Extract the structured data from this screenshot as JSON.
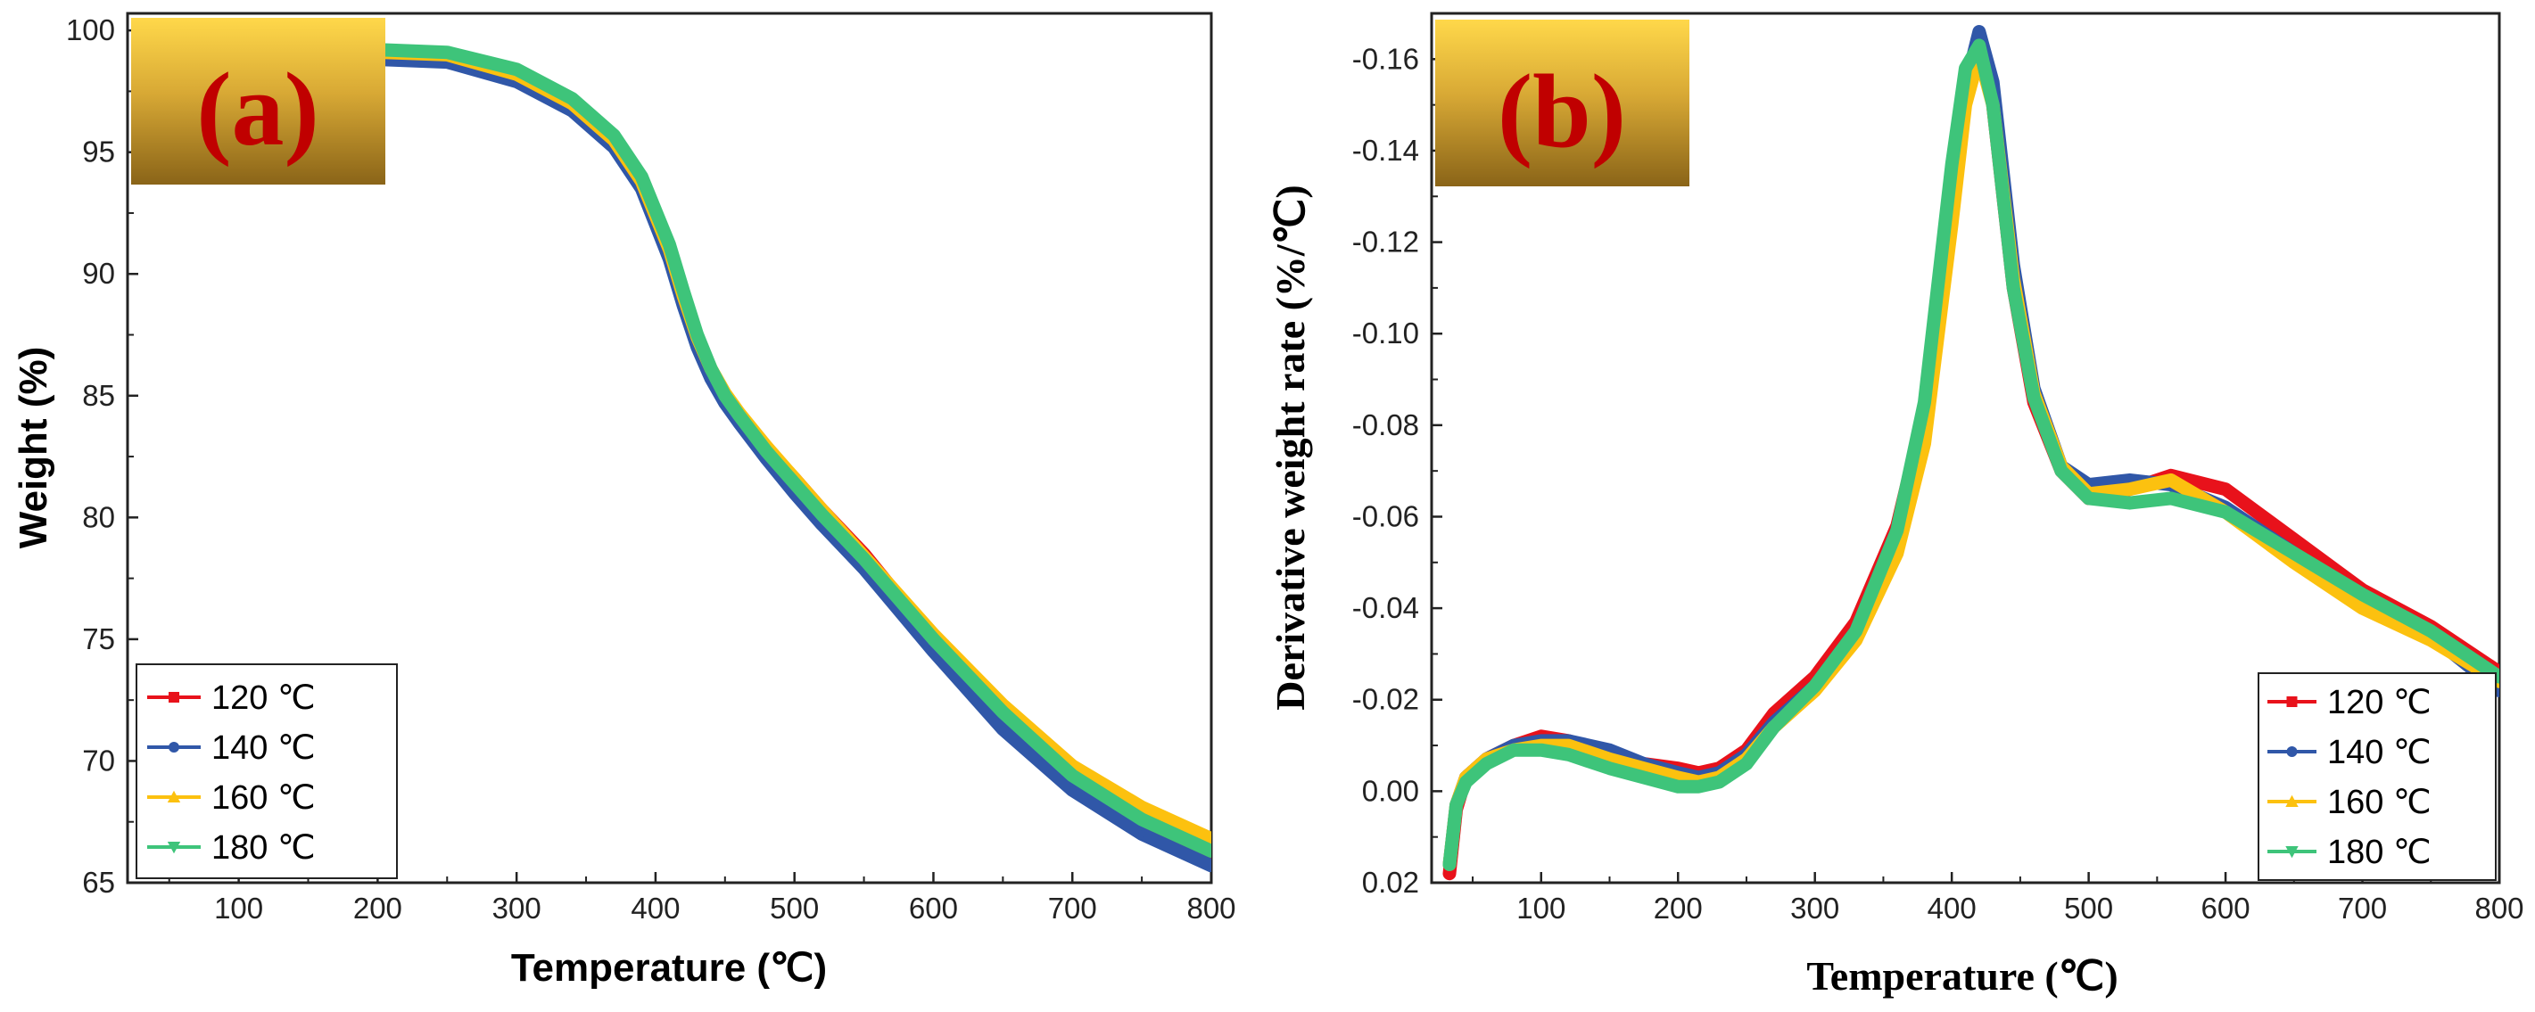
{
  "chart_data": [
    {
      "panel": "(a)",
      "type": "line",
      "xlabel": "Temperature (℃)",
      "ylabel": "Weight (%)",
      "xlim": [
        20,
        800
      ],
      "ylim": [
        65,
        100.7
      ],
      "xticks": [
        100,
        200,
        300,
        400,
        500,
        600,
        700,
        800
      ],
      "yticks": [
        65,
        70,
        75,
        80,
        85,
        90,
        95,
        100
      ],
      "legend_position": "bottom-left",
      "series": [
        {
          "name": "120 ℃",
          "color": "#e8121b",
          "marker": "square",
          "x": [
            205,
            250,
            300,
            340,
            370,
            390,
            410,
            420,
            430,
            440,
            450,
            460,
            480,
            500,
            520,
            550,
            600,
            650,
            700,
            750,
            800
          ],
          "y": [
            99.0,
            98.9,
            98.0,
            96.8,
            95.3,
            93.6,
            90.8,
            89.0,
            87.3,
            86.0,
            85.0,
            84.2,
            82.8,
            81.6,
            80.3,
            78.5,
            75.0,
            71.9,
            69.3,
            67.5,
            66.1
          ]
        },
        {
          "name": "140 ℃",
          "color": "#3057a8",
          "marker": "circle",
          "x": [
            205,
            250,
            300,
            340,
            370,
            390,
            410,
            420,
            430,
            440,
            450,
            460,
            480,
            500,
            520,
            550,
            600,
            650,
            700,
            750,
            800
          ],
          "y": [
            98.8,
            98.7,
            97.9,
            96.7,
            95.2,
            93.5,
            90.6,
            88.7,
            87.0,
            85.7,
            84.7,
            83.9,
            82.4,
            81.0,
            79.7,
            77.9,
            74.5,
            71.3,
            68.8,
            67.0,
            65.7
          ]
        },
        {
          "name": "160 ℃",
          "color": "#fcc10f",
          "marker": "triangle-up",
          "x": [
            205,
            250,
            300,
            340,
            370,
            390,
            410,
            420,
            430,
            440,
            450,
            460,
            480,
            500,
            520,
            550,
            600,
            650,
            700,
            750,
            800
          ],
          "y": [
            99.1,
            99.0,
            98.2,
            97.0,
            95.5,
            93.8,
            91.0,
            89.1,
            87.4,
            86.1,
            85.1,
            84.3,
            82.9,
            81.6,
            80.3,
            78.4,
            75.2,
            72.3,
            69.8,
            68.1,
            66.8
          ]
        },
        {
          "name": "180 ℃",
          "color": "#3ec47a",
          "marker": "triangle-down",
          "x": [
            205,
            250,
            300,
            340,
            370,
            390,
            410,
            420,
            430,
            440,
            450,
            460,
            480,
            500,
            520,
            550,
            600,
            650,
            700,
            750,
            800
          ],
          "y": [
            99.2,
            99.1,
            98.4,
            97.2,
            95.7,
            94.0,
            91.2,
            89.3,
            87.5,
            86.1,
            85.0,
            84.2,
            82.7,
            81.4,
            80.1,
            78.3,
            75.0,
            72.0,
            69.4,
            67.6,
            66.3
          ]
        }
      ]
    },
    {
      "panel": "(b)",
      "type": "line",
      "xlabel": "Temperature (℃)",
      "ylabel": "Derivative weight rate (%/℃)",
      "xlim": [
        20,
        800
      ],
      "ylim": [
        0.02,
        -0.17
      ],
      "xticks": [
        100,
        200,
        300,
        400,
        500,
        600,
        700,
        800
      ],
      "yticks": [
        0.02,
        0.0,
        -0.02,
        -0.04,
        -0.06,
        -0.08,
        -0.1,
        -0.12,
        -0.14,
        -0.16
      ],
      "ytick_labels": [
        "0.02",
        "0.00",
        "-0.02",
        "-0.04",
        "-0.06",
        "-0.08",
        "-0.10",
        "-0.12",
        "-0.14",
        "-0.16"
      ],
      "legend_position": "bottom-right",
      "series": [
        {
          "name": "120 ℃",
          "color": "#e8121b",
          "marker": "square",
          "x": [
            33,
            38,
            45,
            60,
            80,
            100,
            120,
            150,
            175,
            200,
            215,
            230,
            250,
            270,
            300,
            330,
            360,
            380,
            400,
            410,
            420,
            430,
            445,
            460,
            480,
            500,
            530,
            560,
            600,
            650,
            700,
            750,
            800
          ],
          "y": [
            0.018,
            0.004,
            -0.003,
            -0.007,
            -0.01,
            -0.012,
            -0.011,
            -0.008,
            -0.006,
            -0.005,
            -0.004,
            -0.005,
            -0.009,
            -0.017,
            -0.025,
            -0.037,
            -0.058,
            -0.083,
            -0.13,
            -0.152,
            -0.164,
            -0.15,
            -0.11,
            -0.085,
            -0.07,
            -0.064,
            -0.066,
            -0.069,
            -0.066,
            -0.055,
            -0.044,
            -0.036,
            -0.026
          ]
        },
        {
          "name": "140 ℃",
          "color": "#3057a8",
          "marker": "circle",
          "x": [
            33,
            38,
            45,
            60,
            80,
            100,
            120,
            150,
            175,
            200,
            215,
            230,
            250,
            270,
            300,
            330,
            360,
            380,
            400,
            410,
            420,
            430,
            445,
            460,
            480,
            500,
            530,
            560,
            600,
            650,
            700,
            750,
            800
          ],
          "y": [
            0.016,
            0.003,
            -0.003,
            -0.007,
            -0.01,
            -0.011,
            -0.011,
            -0.009,
            -0.006,
            -0.004,
            -0.003,
            -0.004,
            -0.008,
            -0.015,
            -0.023,
            -0.035,
            -0.057,
            -0.083,
            -0.131,
            -0.154,
            -0.166,
            -0.155,
            -0.115,
            -0.088,
            -0.071,
            -0.067,
            -0.068,
            -0.067,
            -0.062,
            -0.052,
            -0.042,
            -0.034,
            -0.022
          ]
        },
        {
          "name": "160 ℃",
          "color": "#fcc10f",
          "marker": "triangle-up",
          "x": [
            33,
            38,
            45,
            60,
            80,
            100,
            120,
            150,
            175,
            200,
            215,
            230,
            250,
            270,
            300,
            330,
            360,
            380,
            400,
            410,
            420,
            430,
            445,
            460,
            480,
            500,
            530,
            560,
            600,
            650,
            700,
            750,
            800
          ],
          "y": [
            0.016,
            0.003,
            -0.003,
            -0.007,
            -0.009,
            -0.01,
            -0.01,
            -0.007,
            -0.005,
            -0.003,
            -0.002,
            -0.003,
            -0.007,
            -0.014,
            -0.022,
            -0.033,
            -0.052,
            -0.076,
            -0.124,
            -0.15,
            -0.161,
            -0.15,
            -0.112,
            -0.087,
            -0.071,
            -0.065,
            -0.066,
            -0.068,
            -0.061,
            -0.05,
            -0.04,
            -0.033,
            -0.024
          ]
        },
        {
          "name": "180 ℃",
          "color": "#3ec47a",
          "marker": "triangle-down",
          "x": [
            33,
            38,
            45,
            60,
            80,
            100,
            120,
            150,
            175,
            200,
            215,
            230,
            250,
            270,
            300,
            330,
            360,
            380,
            400,
            410,
            420,
            430,
            445,
            460,
            480,
            500,
            530,
            560,
            600,
            650,
            700,
            750,
            800
          ],
          "y": [
            0.016,
            0.003,
            -0.002,
            -0.006,
            -0.009,
            -0.009,
            -0.008,
            -0.005,
            -0.003,
            -0.001,
            -0.001,
            -0.002,
            -0.006,
            -0.014,
            -0.023,
            -0.035,
            -0.057,
            -0.085,
            -0.137,
            -0.158,
            -0.163,
            -0.15,
            -0.11,
            -0.086,
            -0.07,
            -0.064,
            -0.063,
            -0.064,
            -0.061,
            -0.052,
            -0.043,
            -0.035,
            -0.025
          ]
        }
      ]
    }
  ]
}
